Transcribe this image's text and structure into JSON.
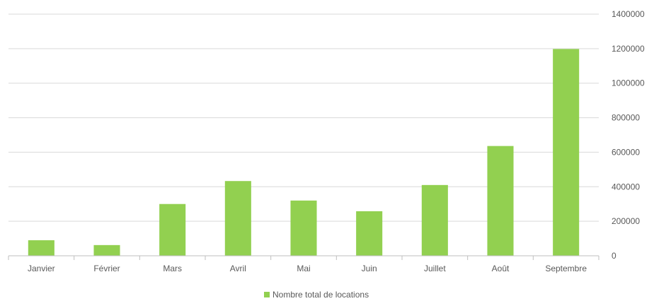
{
  "chart_data": {
    "type": "bar",
    "title": "",
    "xlabel": "",
    "ylabel": "",
    "categories": [
      "Janvier",
      "Février",
      "Mars",
      "Avril",
      "Mai",
      "Juin",
      "Juillet",
      "Août",
      "Septembre"
    ],
    "series": [
      {
        "name": "Nombre total de locations",
        "values": [
          90000,
          62000,
          300000,
          433000,
          320000,
          258000,
          410000,
          636000,
          1198000
        ],
        "color": "#92d050"
      }
    ],
    "ylim": [
      0,
      1400000
    ],
    "yticks": [
      "0",
      "200000",
      "400000",
      "600000",
      "800000",
      "1000000",
      "1200000",
      "1400000"
    ],
    "y_axis_position": "right",
    "grid": true,
    "legend": "bottom",
    "colors": {
      "gridline": "#d9d9d9",
      "axis": "#bfbfbf",
      "text": "#595959"
    }
  }
}
